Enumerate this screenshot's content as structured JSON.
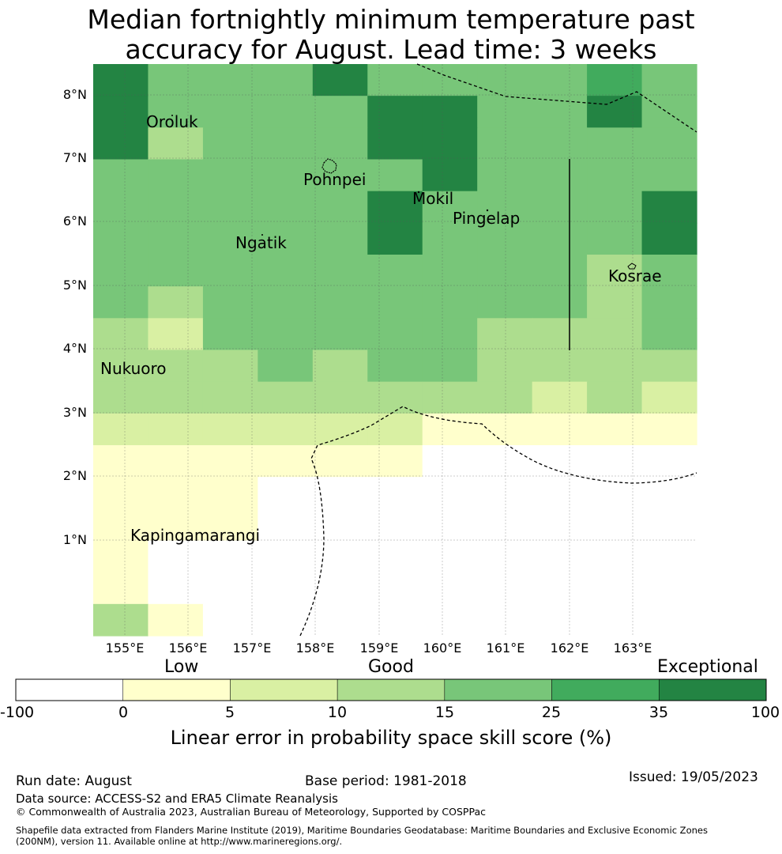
{
  "title": {
    "line1": "Median fortnightly minimum temperature past",
    "line2": "accuracy for August. Lead time: 3 weeks"
  },
  "map": {
    "lat_labels": [
      "8°N",
      "7°N",
      "6°N",
      "5°N",
      "4°N",
      "3°N",
      "2°N",
      "1°N"
    ],
    "lon_labels": [
      "155°E",
      "156°E",
      "157°E",
      "158°E",
      "159°E",
      "160°E",
      "161°E",
      "162°E",
      "163°E"
    ],
    "places": [
      "Oroluk",
      "Pohnpei",
      "Mokil",
      "Pingelap",
      "Ngatik",
      "Kosrae",
      "Nukuoro",
      "Kapingamarangi"
    ],
    "grid_lines": true,
    "boundary_style": "dashed",
    "category_colors": [
      "#ffffff",
      "#ffffcc",
      "#d9f0a3",
      "#addd8e",
      "#78c679",
      "#41ab5d",
      "#238443"
    ],
    "skill_grid": [
      [
        6,
        4,
        4,
        4,
        6,
        4,
        4,
        4,
        4,
        5,
        4
      ],
      [
        6,
        4,
        4,
        4,
        4,
        6,
        6,
        4,
        4,
        6,
        4
      ],
      [
        6,
        3,
        4,
        4,
        4,
        6,
        6,
        4,
        4,
        4,
        4
      ],
      [
        4,
        4,
        4,
        4,
        4,
        4,
        6,
        4,
        4,
        4,
        4
      ],
      [
        4,
        4,
        4,
        4,
        4,
        6,
        4,
        4,
        4,
        4,
        6
      ],
      [
        4,
        4,
        4,
        4,
        4,
        6,
        4,
        4,
        4,
        4,
        6
      ],
      [
        4,
        4,
        4,
        4,
        4,
        4,
        4,
        4,
        4,
        3,
        4
      ],
      [
        4,
        3,
        4,
        4,
        4,
        4,
        4,
        4,
        4,
        3,
        4
      ],
      [
        3,
        2,
        4,
        4,
        4,
        4,
        4,
        3,
        3,
        3,
        4
      ],
      [
        3,
        3,
        3,
        4,
        3,
        4,
        4,
        3,
        3,
        3,
        3
      ],
      [
        3,
        3,
        3,
        3,
        3,
        3,
        3,
        3,
        2,
        3,
        2
      ],
      [
        2,
        2,
        2,
        2,
        2,
        2,
        1,
        1,
        1,
        1,
        1
      ],
      [
        1,
        1,
        1,
        1,
        1,
        1,
        0,
        0,
        0,
        0,
        0
      ],
      [
        1,
        1,
        1,
        0,
        0,
        0,
        0,
        0,
        0,
        0,
        0
      ],
      [
        1,
        1,
        1,
        0,
        0,
        0,
        0,
        0,
        0,
        0,
        0
      ],
      [
        1,
        0,
        0,
        0,
        0,
        0,
        0,
        0,
        0,
        0,
        0
      ],
      [
        1,
        0,
        0,
        0,
        0,
        0,
        0,
        0,
        0,
        0,
        0
      ],
      [
        3,
        1,
        0,
        0,
        0,
        0,
        0,
        0,
        0,
        0,
        0
      ]
    ]
  },
  "colorbar": {
    "category_labels": [
      "Low",
      "Good",
      "Exceptional"
    ],
    "ticks": [
      "-100",
      "0",
      "5",
      "10",
      "15",
      "25",
      "35",
      "100"
    ],
    "colors": [
      "#ffffff",
      "#ffffcc",
      "#d9f0a3",
      "#addd8e",
      "#78c679",
      "#41ab5d",
      "#238443"
    ],
    "title": "Linear error in probability space skill score (%)"
  },
  "footer": {
    "run_date": "Run date: August",
    "base_period": "Base period: 1981-2018",
    "issued": "Issued: 19/05/2023",
    "data_source": "Data source: ACCESS-S2 and ERA5 Climate Reanalysis",
    "copyright": "© Commonwealth of Australia 2023, Australian Bureau of Meteorology, Supported by COSPPac",
    "shapefile_line1": "Shapefile data extracted from Flanders Marine Institute (2019), Maritime Boundaries Geodatabase: Maritime Boundaries and Exclusive Economic Zones",
    "shapefile_line2": "(200NM), version 11. Available online at http://www.marineregions.org/."
  }
}
